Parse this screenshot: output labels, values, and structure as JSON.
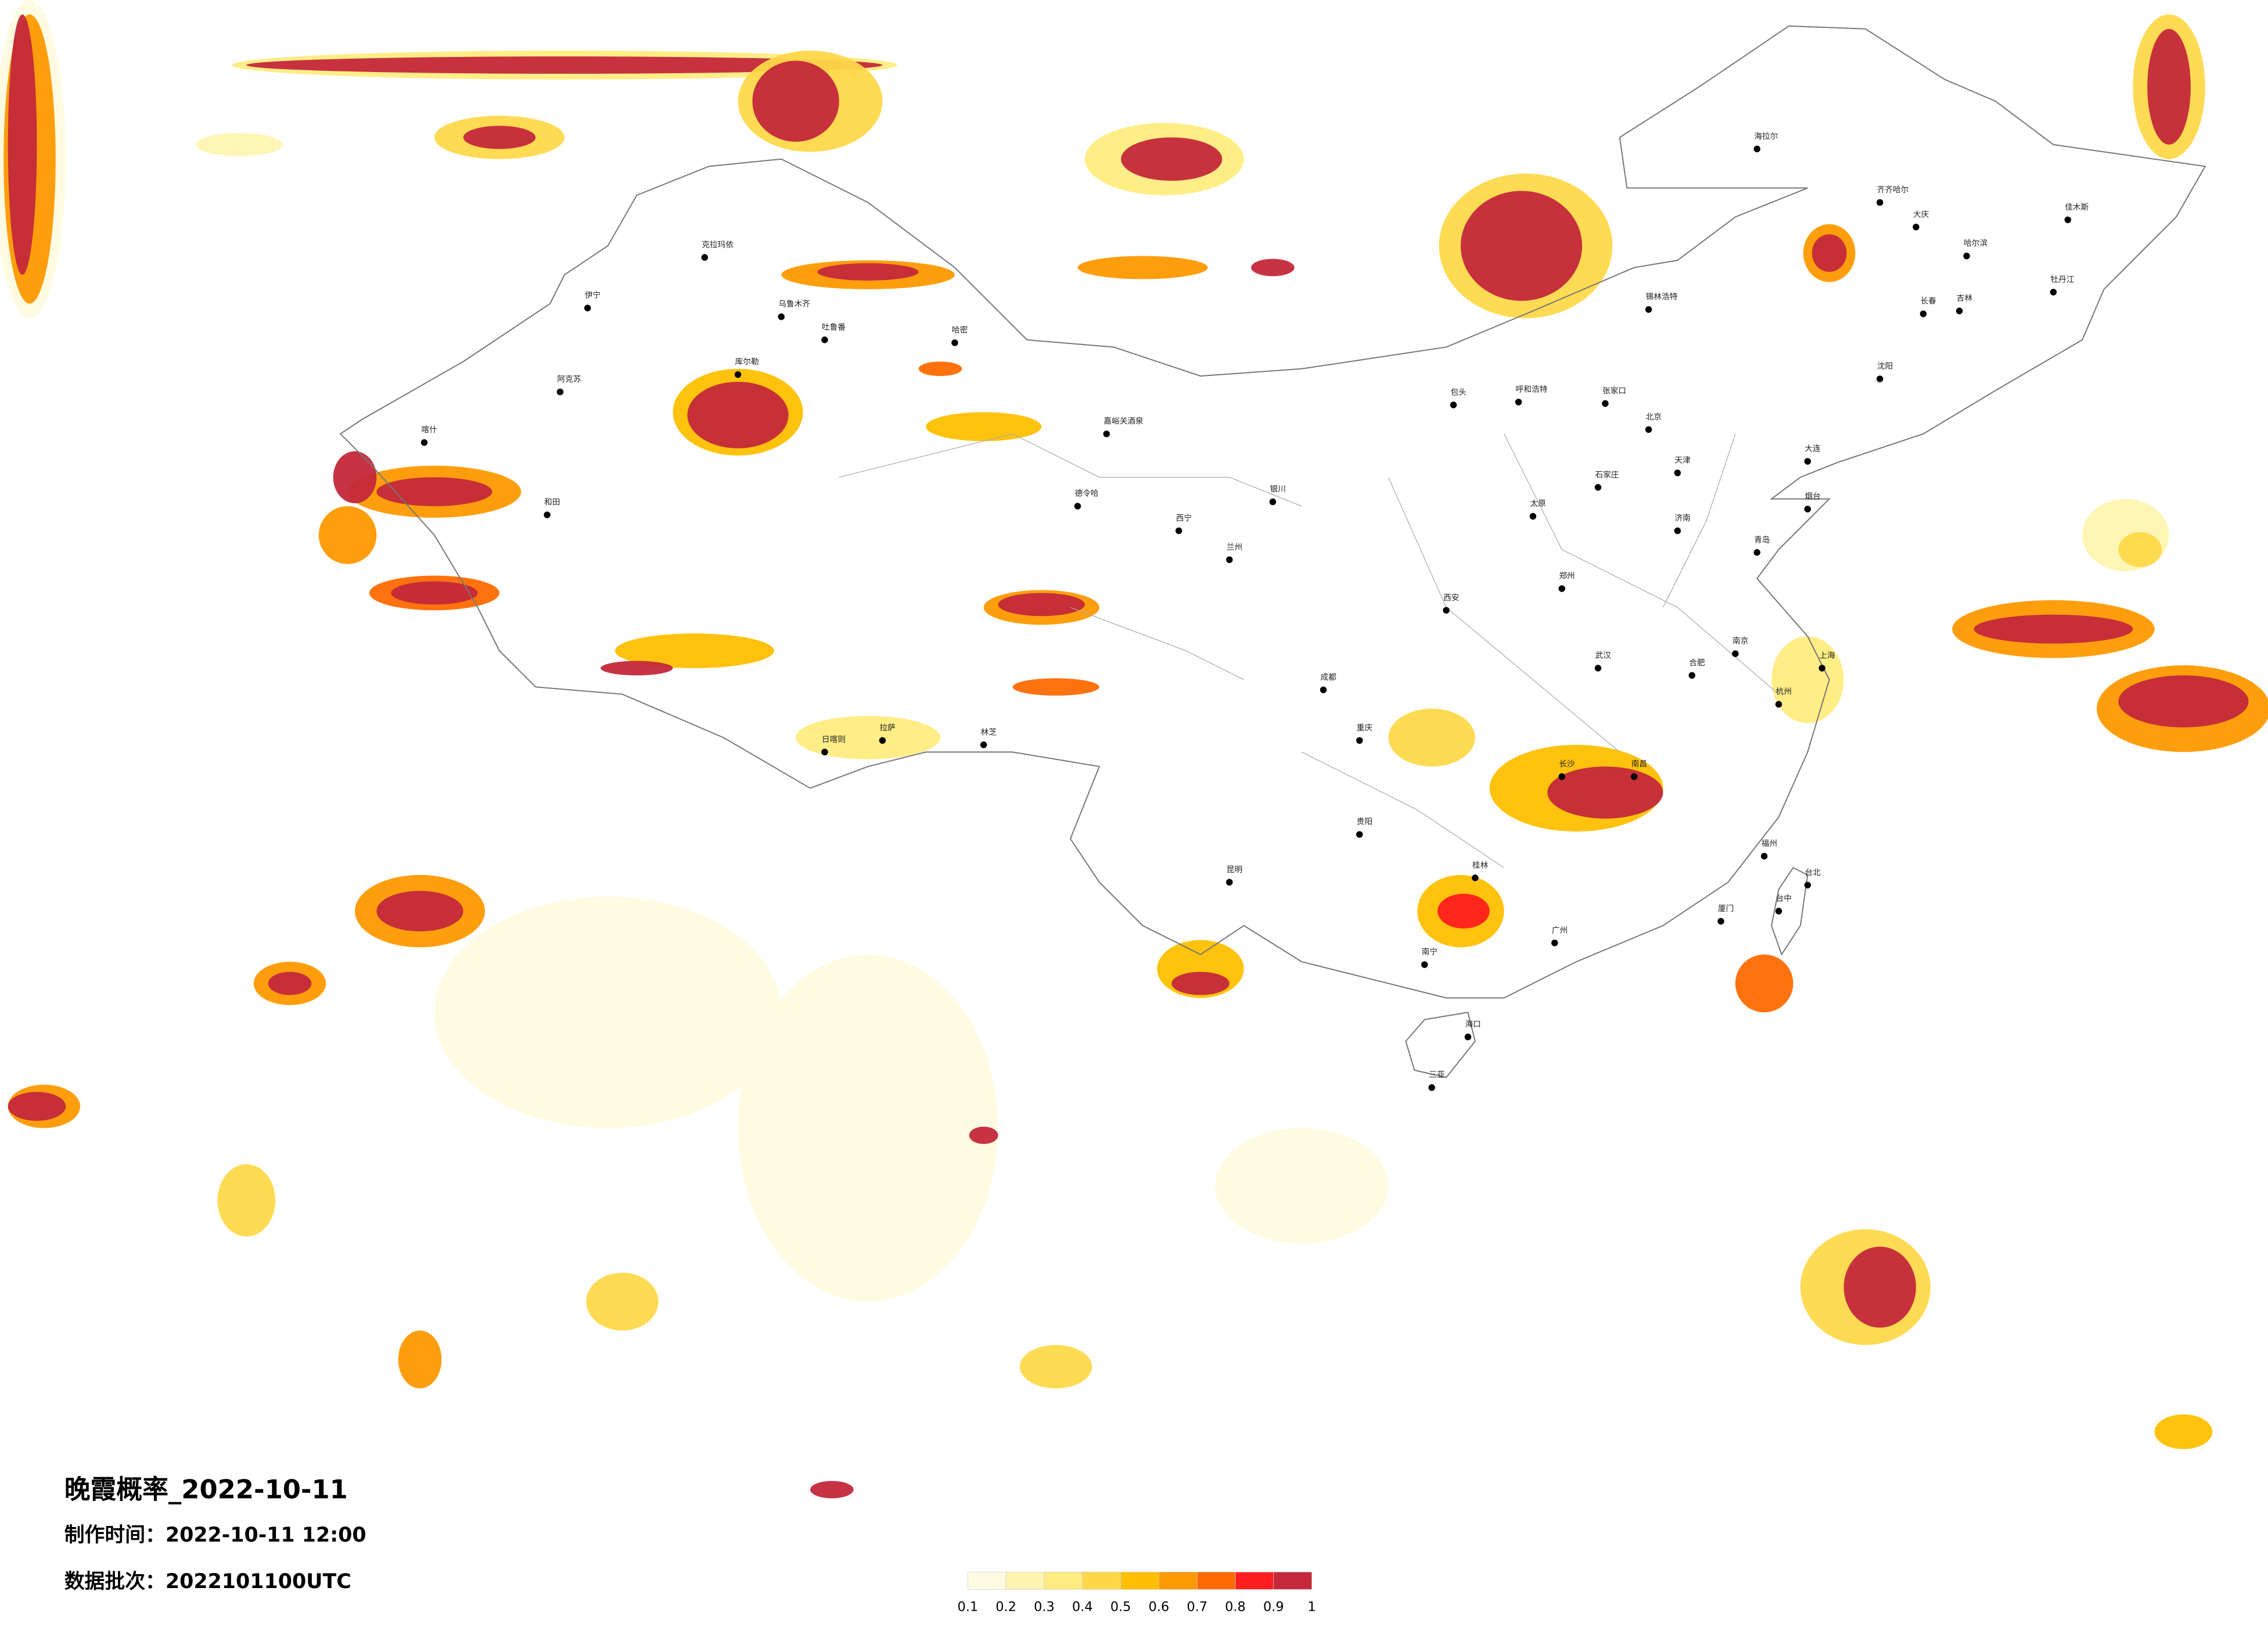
{
  "header": {
    "title": "晚霞概率_2022-10-11",
    "made_time": "制作时间：2022-10-11 12:00",
    "batch": "数据批次：2022101100UTC"
  },
  "legend": {
    "colors": [
      "#fffbe0",
      "#fff4b0",
      "#ffec80",
      "#ffd84a",
      "#ffbf00",
      "#ff9900",
      "#ff6a00",
      "#ff1e1e",
      "#c4283a"
    ],
    "ticks": [
      0.1,
      0.2,
      0.3,
      0.4,
      0.5,
      0.6,
      0.7,
      0.8,
      0.9,
      1
    ]
  },
  "cities": [
    "克拉玛依",
    "伊宁",
    "阿克苏",
    "和田",
    "喀什",
    "乌鲁木齐",
    "吐鲁番",
    "哈密",
    "库尔勒",
    "嘉峪关酒泉",
    "德令哈",
    "拉萨",
    "日喀则",
    "林芝",
    "西宁",
    "兰州",
    "银川",
    "呼和浩特",
    "包头",
    "北京",
    "天津",
    "石家庄",
    "太原",
    "济南",
    "郑州",
    "西安",
    "成都",
    "重庆",
    "武汉",
    "长沙",
    "南昌",
    "杭州",
    "上海",
    "南京",
    "合肥",
    "福州",
    "广州",
    "南宁",
    "昆明",
    "贵阳",
    "海口",
    "三亚",
    "台北",
    "台中",
    "哈尔滨",
    "长春",
    "沈阳",
    "大连",
    "齐齐哈尔",
    "海拉尔",
    "锡林浩特",
    "张家口",
    "大庆",
    "佳木斯",
    "牡丹江",
    "吉林",
    "青岛",
    "烟台",
    "厦门",
    "桂林"
  ]
}
